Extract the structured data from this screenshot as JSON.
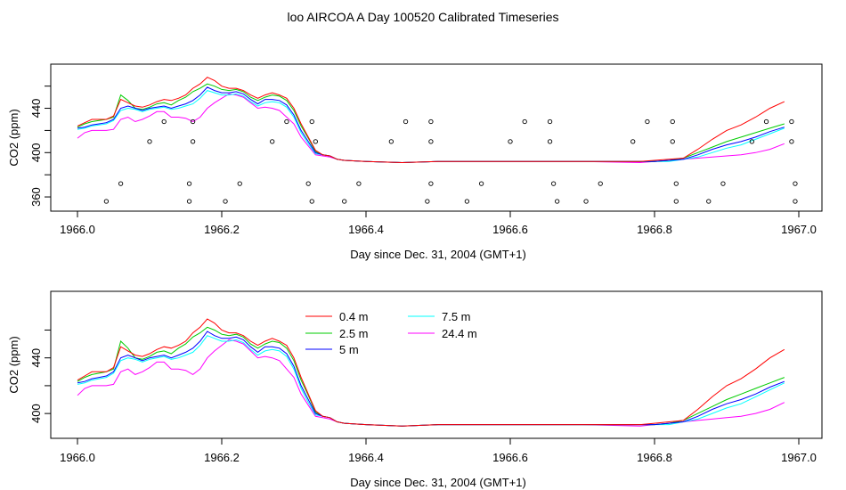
{
  "title": "loo AIRCOA A  Day 100520  Calibrated Timeseries",
  "chart_data": [
    {
      "type": "line",
      "panel": "top",
      "xlabel": "Day since Dec. 31, 2004 (GMT+1)",
      "ylabel": "CO2 (ppm)",
      "xlim": [
        1966.0,
        1967.0
      ],
      "ylim": [
        352,
        475
      ],
      "x_ticks": [
        1966.0,
        1966.2,
        1966.4,
        1966.6,
        1966.8,
        1967.0
      ],
      "x_tick_labels": [
        "1966.0",
        "1966.2",
        "1966.4",
        "1966.6",
        "1966.8",
        "1967.0"
      ],
      "y_ticks": [
        360,
        380,
        400,
        420,
        440,
        460
      ],
      "y_tick_labels": [
        "360",
        "",
        "400",
        "",
        "440",
        ""
      ],
      "grid": false,
      "legend": "none",
      "series_ref": "shared_series",
      "scatter": {
        "name": "",
        "color": "#000000",
        "x": [
          1966.04,
          1966.06,
          1966.1,
          1966.12,
          1966.155,
          1966.155,
          1966.16,
          1966.16,
          1966.205,
          1966.225,
          1966.27,
          1966.29,
          1966.32,
          1966.325,
          1966.325,
          1966.33,
          1966.37,
          1966.39,
          1966.435,
          1966.455,
          1966.485,
          1966.49,
          1966.49,
          1966.49,
          1966.54,
          1966.56,
          1966.6,
          1966.62,
          1966.655,
          1966.655,
          1966.66,
          1966.665,
          1966.705,
          1966.725,
          1966.77,
          1966.79,
          1966.825,
          1966.825,
          1966.83,
          1966.83,
          1966.875,
          1966.895,
          1966.935,
          1966.955,
          1966.99,
          1966.99,
          1966.995,
          1966.995
        ],
        "y": [
          356,
          372,
          410,
          428,
          356,
          372,
          410,
          428,
          356,
          372,
          410,
          428,
          372,
          356,
          428,
          410,
          356,
          372,
          410,
          428,
          356,
          372,
          410,
          428,
          356,
          372,
          410,
          428,
          428,
          410,
          372,
          356,
          356,
          372,
          410,
          428,
          428,
          410,
          372,
          356,
          356,
          372,
          410,
          428,
          428,
          410,
          372,
          356
        ]
      }
    },
    {
      "type": "line",
      "panel": "bottom",
      "xlabel": "Day since Dec. 31, 2004 (GMT+1)",
      "ylabel": "CO2 (ppm)",
      "xlim": [
        1966.0,
        1967.0
      ],
      "ylim": [
        386,
        484
      ],
      "x_ticks": [
        1966.0,
        1966.2,
        1966.4,
        1966.6,
        1966.8,
        1967.0
      ],
      "x_tick_labels": [
        "1966.0",
        "1966.2",
        "1966.4",
        "1966.6",
        "1966.8",
        "1967.0"
      ],
      "y_ticks": [
        400,
        420,
        440,
        460
      ],
      "y_tick_labels": [
        "400",
        "",
        "440",
        ""
      ],
      "grid": false,
      "legend": "top-left",
      "series_ref": "shared_series"
    }
  ],
  "legend_entries": [
    {
      "name": "0.4 m",
      "color": "#ff0000"
    },
    {
      "name": "2.5 m",
      "color": "#00cc00"
    },
    {
      "name": "5 m",
      "color": "#0000ff"
    },
    {
      "name": "7.5 m",
      "color": "#00ffff"
    },
    {
      "name": "24.4 m",
      "color": "#ff00ff"
    }
  ],
  "shared_series": {
    "x": [
      1966.0,
      1966.01,
      1966.02,
      1966.03,
      1966.04,
      1966.05,
      1966.06,
      1966.07,
      1966.08,
      1966.09,
      1966.1,
      1966.11,
      1966.12,
      1966.13,
      1966.14,
      1966.15,
      1966.16,
      1966.17,
      1966.18,
      1966.19,
      1966.2,
      1966.21,
      1966.22,
      1966.23,
      1966.24,
      1966.25,
      1966.26,
      1966.27,
      1966.28,
      1966.29,
      1966.3,
      1966.31,
      1966.32,
      1966.33,
      1966.34,
      1966.35,
      1966.36,
      1966.37,
      1966.4,
      1966.45,
      1966.5,
      1966.6,
      1966.7,
      1966.78,
      1966.8,
      1966.82,
      1966.84,
      1966.86,
      1966.88,
      1966.9,
      1966.92,
      1966.94,
      1966.96,
      1966.98
    ],
    "series": [
      {
        "name": "0.4 m",
        "color": "#ff0000",
        "y": [
          424,
          427,
          430,
          430,
          430,
          433,
          448,
          445,
          442,
          441,
          443,
          446,
          448,
          447,
          449,
          452,
          458,
          462,
          468,
          465,
          460,
          458,
          458,
          456,
          452,
          449,
          452,
          454,
          452,
          449,
          440,
          426,
          414,
          402,
          398,
          397,
          394,
          393,
          392,
          391,
          392,
          392,
          392,
          392,
          393,
          394,
          395,
          403,
          412,
          420,
          425,
          432,
          440,
          446
        ]
      },
      {
        "name": "2.5 m",
        "color": "#00cc00",
        "y": [
          423,
          426,
          428,
          429,
          430,
          432,
          452,
          447,
          440,
          439,
          441,
          444,
          445,
          443,
          447,
          450,
          455,
          458,
          462,
          460,
          457,
          456,
          457,
          455,
          450,
          447,
          450,
          452,
          451,
          447,
          438,
          424,
          413,
          401,
          398,
          397,
          394,
          393,
          392,
          391,
          392,
          392,
          392,
          392,
          392,
          393,
          395,
          400,
          405,
          410,
          414,
          418,
          422,
          426
        ]
      },
      {
        "name": "5 m",
        "color": "#0000ff",
        "y": [
          422,
          423,
          425,
          426,
          427,
          430,
          440,
          442,
          440,
          438,
          440,
          441,
          442,
          440,
          442,
          444,
          447,
          452,
          459,
          456,
          454,
          454,
          455,
          453,
          448,
          444,
          448,
          448,
          447,
          443,
          434,
          420,
          410,
          400,
          398,
          397,
          394,
          393,
          392,
          391,
          392,
          392,
          392,
          392,
          392,
          393,
          394,
          398,
          403,
          407,
          410,
          414,
          419,
          423
        ]
      },
      {
        "name": "7.5 m",
        "color": "#00ffff",
        "y": [
          421,
          422,
          424,
          425,
          426,
          429,
          438,
          440,
          439,
          437,
          439,
          440,
          441,
          439,
          440,
          442,
          444,
          449,
          456,
          454,
          452,
          452,
          453,
          451,
          446,
          442,
          445,
          446,
          445,
          441,
          432,
          418,
          408,
          399,
          398,
          397,
          394,
          393,
          392,
          391,
          392,
          392,
          392,
          392,
          392,
          392,
          394,
          396,
          400,
          404,
          407,
          412,
          417,
          422
        ]
      },
      {
        "name": "24.4 m",
        "color": "#ff00ff",
        "y": [
          413,
          418,
          420,
          420,
          420,
          421,
          430,
          432,
          428,
          430,
          433,
          437,
          437,
          432,
          432,
          431,
          428,
          432,
          440,
          445,
          449,
          453,
          452,
          450,
          445,
          440,
          441,
          440,
          438,
          432,
          426,
          414,
          406,
          398,
          397,
          396,
          394,
          393,
          392,
          391,
          392,
          392,
          392,
          391,
          392,
          393,
          394,
          395,
          396,
          397,
          398,
          400,
          403,
          408
        ]
      }
    ]
  }
}
